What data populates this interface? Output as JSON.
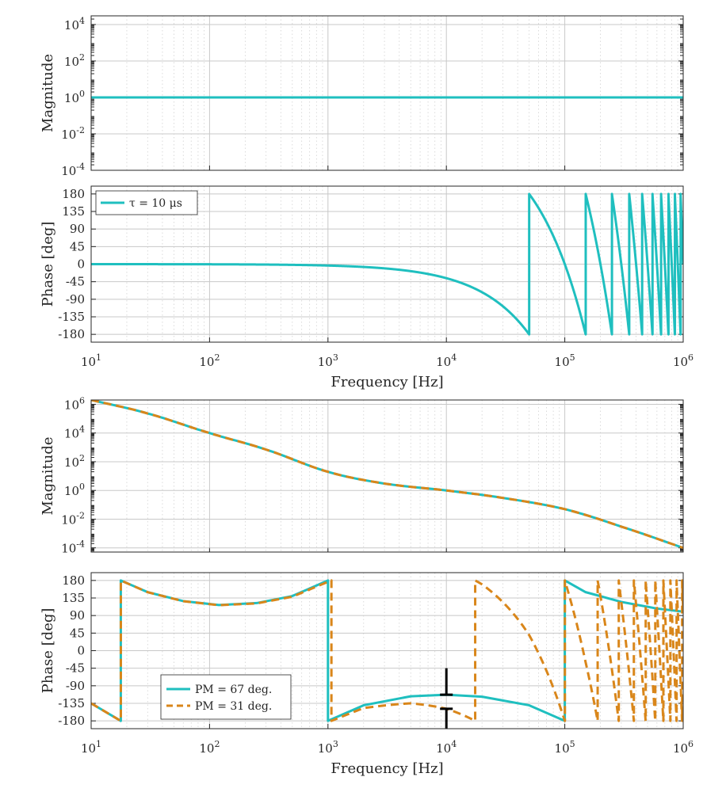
{
  "colors": {
    "teal": "#1fbfbf",
    "orange": "#d9861a",
    "black": "#000000"
  },
  "chart_data": [
    {
      "type": "line",
      "title": "",
      "xlabel": "",
      "ylabel": "Magnitude",
      "xscale": "log",
      "yscale": "log",
      "xlim": [
        10,
        1000000
      ],
      "ylim": [
        0.0001,
        30000
      ],
      "xticks": [
        10,
        100,
        1000,
        10000,
        100000,
        1000000
      ],
      "yticks": [
        0.0001,
        0.01,
        1,
        100,
        10000
      ],
      "ytick_labels": [
        {
          "b": "10",
          "e": "-4"
        },
        {
          "b": "10",
          "e": "-2"
        },
        {
          "b": "10",
          "e": "0"
        },
        {
          "b": "10",
          "e": "2"
        },
        {
          "b": "10",
          "e": "4"
        }
      ],
      "grid": true,
      "series": [
        {
          "color": "#1fbfbf",
          "style": "solid",
          "model": "constant",
          "value": 1
        }
      ]
    },
    {
      "type": "line",
      "title": "",
      "xlabel": "Frequency [Hz]",
      "ylabel": "Phase [deg]",
      "xscale": "log",
      "xlim": [
        10,
        1000000
      ],
      "ylim": [
        -200,
        200
      ],
      "xticks": [
        10,
        100,
        1000,
        10000,
        100000,
        1000000
      ],
      "xtick_labels": [
        {
          "b": "10",
          "e": "1"
        },
        {
          "b": "10",
          "e": "2"
        },
        {
          "b": "10",
          "e": "3"
        },
        {
          "b": "10",
          "e": "4"
        },
        {
          "b": "10",
          "e": "5"
        },
        {
          "b": "10",
          "e": "6"
        }
      ],
      "yticks": [
        180,
        135,
        90,
        45,
        0,
        -45,
        -90,
        -135,
        -180
      ],
      "grid": true,
      "legend": {
        "position": "top-left"
      },
      "series": [
        {
          "name": "τ = 10 μs",
          "color": "#1fbfbf",
          "style": "solid",
          "model": "pure-delay phase",
          "delay_s": 1e-05
        }
      ]
    },
    {
      "type": "line",
      "title": "",
      "xlabel": "",
      "ylabel": "Magnitude",
      "xscale": "log",
      "yscale": "log",
      "xlim": [
        10,
        1000000
      ],
      "ylim": [
        5.1e-05,
        2000000
      ],
      "xticks": [
        10,
        100,
        1000,
        10000,
        100000,
        1000000
      ],
      "yticks": [
        0.0001,
        0.01,
        1,
        100,
        10000,
        1000000
      ],
      "ytick_labels": [
        {
          "b": "10",
          "e": "-4"
        },
        {
          "b": "10",
          "e": "-2"
        },
        {
          "b": "10",
          "e": "0"
        },
        {
          "b": "10",
          "e": "2"
        },
        {
          "b": "10",
          "e": "4"
        },
        {
          "b": "10",
          "e": "6"
        }
      ],
      "grid": true,
      "series": [
        {
          "color": "#1fbfbf",
          "style": "solid",
          "x": [
            10,
            30,
            100,
            300,
            1000,
            3000,
            10000,
            30000,
            100000,
            300000,
            1000000
          ],
          "y": [
            2000000,
            230000,
            10000,
            700,
            20,
            3,
            1,
            0.3,
            0.05,
            0.003,
            0.0001
          ]
        },
        {
          "color": "#d9861a",
          "style": "dashed",
          "x": [
            10,
            30,
            100,
            300,
            1000,
            3000,
            10000,
            30000,
            100000,
            300000,
            1000000
          ],
          "y": [
            2000000,
            230000,
            10000,
            700,
            20,
            3,
            1,
            0.3,
            0.05,
            0.003,
            0.0001
          ]
        }
      ]
    },
    {
      "type": "line",
      "title": "",
      "xlabel": "Frequency [Hz]",
      "ylabel": "Phase [deg]",
      "xscale": "log",
      "xlim": [
        10,
        1000000
      ],
      "ylim": [
        -200,
        200
      ],
      "xticks": [
        10,
        100,
        1000,
        10000,
        100000,
        1000000
      ],
      "xtick_labels": [
        {
          "b": "10",
          "e": "1"
        },
        {
          "b": "10",
          "e": "2"
        },
        {
          "b": "10",
          "e": "3"
        },
        {
          "b": "10",
          "e": "4"
        },
        {
          "b": "10",
          "e": "5"
        },
        {
          "b": "10",
          "e": "6"
        }
      ],
      "yticks": [
        180,
        135,
        90,
        45,
        0,
        -45,
        -90,
        -135,
        -180
      ],
      "grid": true,
      "legend": {
        "position": "bottom-left"
      },
      "series": [
        {
          "name": "PM = 67 deg.",
          "color": "#1fbfbf",
          "style": "solid",
          "x": [
            10,
            17.8,
            17.8,
            30,
            60,
            120,
            250,
            500,
            1000,
            1000,
            2000,
            5000,
            10000,
            20000,
            50000,
            100000,
            100000,
            150000,
            300000,
            600000,
            1000000
          ],
          "y": [
            -135,
            -180,
            180,
            150,
            127,
            117,
            122,
            140,
            180,
            -180,
            -140,
            -117,
            -113,
            -118,
            -140,
            -180,
            180,
            150,
            125,
            108,
            100
          ]
        },
        {
          "color": "#d9861a",
          "style": "dashed",
          "model": "loop phase with added delay",
          "delay_s": 1e-05,
          "note": "same curve as PM = 67 deg. with the τ = 10 μs delay phase added"
        }
      ],
      "markers": [
        {
          "x": 10000,
          "from": -113,
          "to": -45,
          "color": "#000000"
        },
        {
          "x": 10000,
          "from": -149,
          "to": -205,
          "color": "#000000"
        }
      ],
      "legend_entries_extra": [
        "PM = 31 deg."
      ]
    }
  ]
}
